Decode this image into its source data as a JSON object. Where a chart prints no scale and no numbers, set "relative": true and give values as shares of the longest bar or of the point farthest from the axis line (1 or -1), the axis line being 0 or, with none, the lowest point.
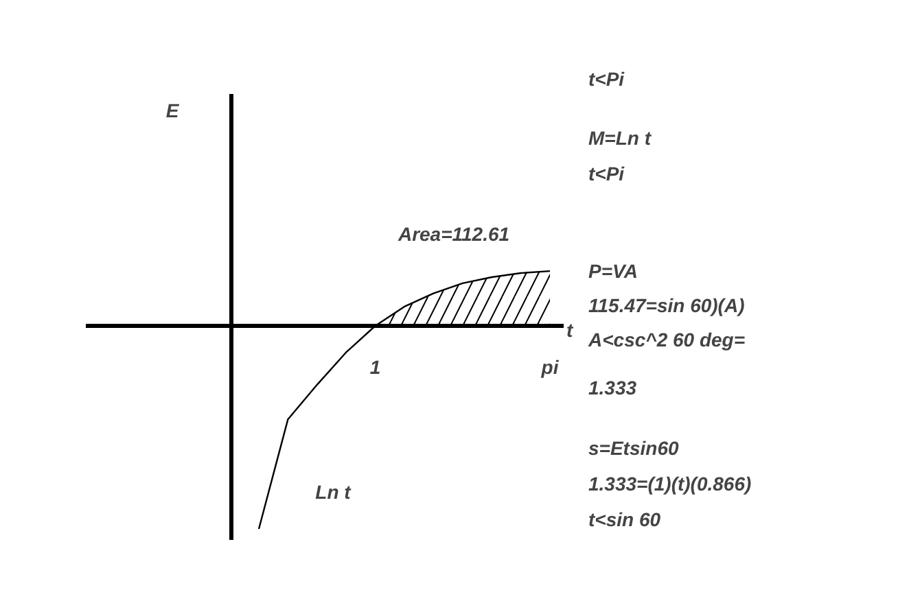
{
  "chart_data": {
    "type": "line",
    "relative": true,
    "xlabel": "t",
    "categories": [
      null,
      null,
      null,
      null,
      "1",
      null,
      null,
      null,
      null,
      null,
      "pi"
    ],
    "series": [
      {
        "name": "Ln t",
        "color": "#000000",
        "values": [
          -1,
          -0.46,
          -0.29,
          -0.13,
          0,
          0.095,
          0.16,
          0.21,
          0.24,
          0.26,
          0.27
        ]
      },
      {
        "type": "area",
        "color": "#000000",
        "values": [
          null,
          null,
          null,
          null,
          0,
          0.095,
          0.16,
          0.21,
          0.24,
          0.26,
          0.27
        ]
      }
    ],
    "annotations": [
      "E",
      "Area=112.61",
      "t<Pi",
      "M=Ln t",
      "t<Pi",
      "P=VA",
      "115.47=sin 60)(A)",
      "A<csc^2 60 deg=",
      "1.333",
      "s=Etsin60",
      "1.333=(1)(t)(0.866)",
      "t<sin 60"
    ],
    "grid": false
  }
}
